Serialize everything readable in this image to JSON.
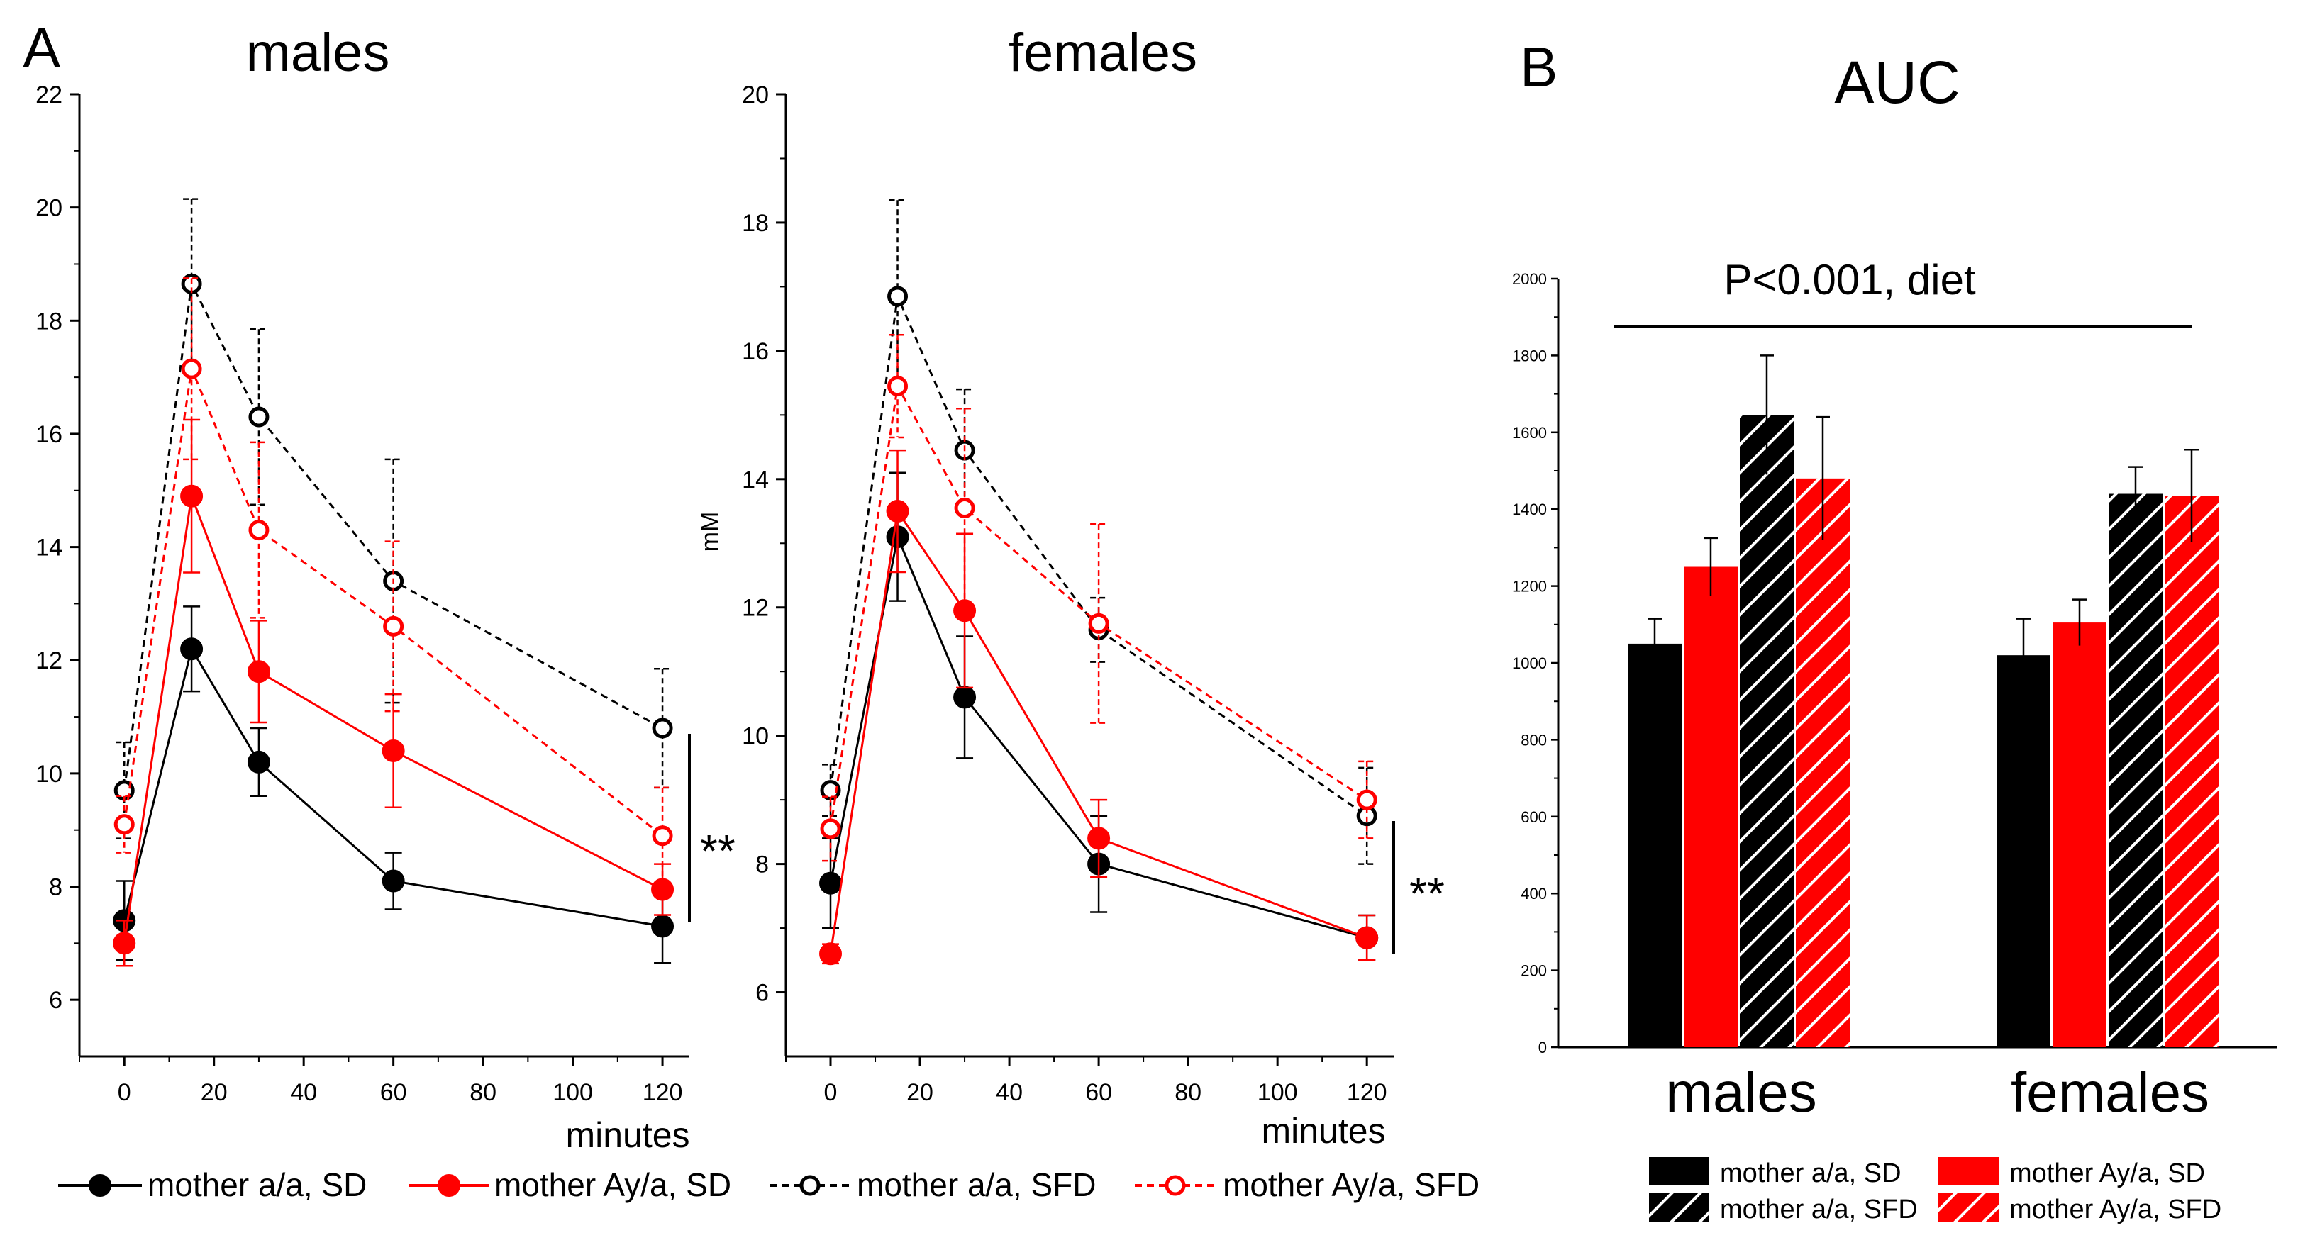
{
  "chart_data": [
    {
      "type": "line",
      "panel_label": "A",
      "title": "males",
      "xlabel": "minutes",
      "ylabel": "",
      "x": [
        0,
        15,
        30,
        60,
        120
      ],
      "xticks": [
        0,
        20,
        40,
        60,
        80,
        100,
        120
      ],
      "yticks": [
        6,
        8,
        10,
        12,
        14,
        16,
        18,
        20,
        22
      ],
      "xlim": [
        -10,
        126
      ],
      "ylim": [
        5,
        22
      ],
      "series": [
        {
          "name": "mother a/a, SD",
          "values": [
            7.4,
            12.2,
            10.2,
            8.1,
            7.3
          ],
          "errors": [
            0.7,
            0.75,
            0.6,
            0.5,
            0.65
          ],
          "color": "#000000",
          "filled": true,
          "dashed": false
        },
        {
          "name": "mother Ay/a, SD",
          "values": [
            7.0,
            14.9,
            11.8,
            10.4,
            7.95
          ],
          "errors": [
            0.4,
            1.35,
            0.9,
            1.0,
            0.45
          ],
          "color": "#ff0000",
          "filled": true,
          "dashed": false
        },
        {
          "name": "mother a/a, SFD",
          "values": [
            9.7,
            18.65,
            16.3,
            13.4,
            10.8
          ],
          "errors": [
            0.85,
            1.5,
            1.55,
            2.15,
            1.05
          ],
          "color": "#000000",
          "filled": false,
          "dashed": true
        },
        {
          "name": "mother Ay/a, SFD",
          "values": [
            9.1,
            17.15,
            14.3,
            12.6,
            8.9
          ],
          "errors": [
            0.5,
            1.6,
            1.55,
            1.5,
            0.85
          ],
          "color": "#ff0000",
          "filled": false,
          "dashed": true
        }
      ],
      "annotation": "**"
    },
    {
      "type": "line",
      "title": "females",
      "xlabel": "minutes",
      "ylabel": "mM",
      "x": [
        0,
        15,
        30,
        60,
        120
      ],
      "xticks": [
        0,
        20,
        40,
        60,
        80,
        100,
        120
      ],
      "yticks": [
        6,
        8,
        10,
        12,
        14,
        16,
        18,
        20
      ],
      "xlim": [
        -10,
        126
      ],
      "ylim": [
        5,
        20
      ],
      "series": [
        {
          "name": "mother a/a, SD",
          "values": [
            7.7,
            13.1,
            10.6,
            8.0,
            6.85
          ],
          "errors": [
            0.7,
            1.0,
            0.95,
            0.75,
            0.35
          ],
          "color": "#000000",
          "filled": true,
          "dashed": false
        },
        {
          "name": "mother Ay/a, SD",
          "values": [
            6.6,
            13.5,
            11.95,
            8.4,
            6.85
          ],
          "errors": [
            0.15,
            0.95,
            1.2,
            0.6,
            0.35
          ],
          "color": "#ff0000",
          "filled": true,
          "dashed": false
        },
        {
          "name": "mother a/a, SFD",
          "values": [
            9.15,
            16.85,
            14.45,
            11.65,
            8.75
          ],
          "errors": [
            0.4,
            1.5,
            0.95,
            0.5,
            0.75
          ],
          "color": "#000000",
          "filled": false,
          "dashed": true
        },
        {
          "name": "mother Ay/a, SFD",
          "values": [
            8.55,
            15.45,
            13.55,
            11.75,
            9.0
          ],
          "errors": [
            0.5,
            0.8,
            1.55,
            1.55,
            0.6
          ],
          "color": "#ff0000",
          "filled": false,
          "dashed": true
        }
      ],
      "annotation": "**"
    },
    {
      "type": "bar",
      "panel_label": "B",
      "title": "AUC",
      "categories": [
        "males",
        "females"
      ],
      "yticks": [
        0,
        200,
        400,
        600,
        800,
        1000,
        1200,
        1400,
        1600,
        1800,
        2000
      ],
      "ylim": [
        0,
        2000
      ],
      "series": [
        {
          "name": "mother a/a, SD",
          "values": [
            1050,
            1020
          ],
          "errors": [
            65,
            95
          ],
          "color": "#000000",
          "hatched": false
        },
        {
          "name": "mother Ay/a, SD",
          "values": [
            1250,
            1105
          ],
          "errors": [
            75,
            60
          ],
          "color": "#ff0000",
          "hatched": false
        },
        {
          "name": "mother a/a, SFD",
          "values": [
            1645,
            1440
          ],
          "errors": [
            155,
            70
          ],
          "color": "#000000",
          "hatched": true
        },
        {
          "name": "mother Ay/a, SFD",
          "values": [
            1480,
            1435
          ],
          "errors": [
            160,
            120
          ],
          "color": "#ff0000",
          "hatched": true
        }
      ],
      "annotation": "P<0.001, diet"
    }
  ],
  "legend_line": [
    "mother a/a, SD",
    "mother Ay/a, SD",
    "mother a/a, SFD",
    "mother Ay/a, SFD"
  ],
  "legend_bar": [
    "mother a/a, SD",
    "mother Ay/a, SD",
    "mother a/a, SFD",
    "mother Ay/a, SFD"
  ]
}
